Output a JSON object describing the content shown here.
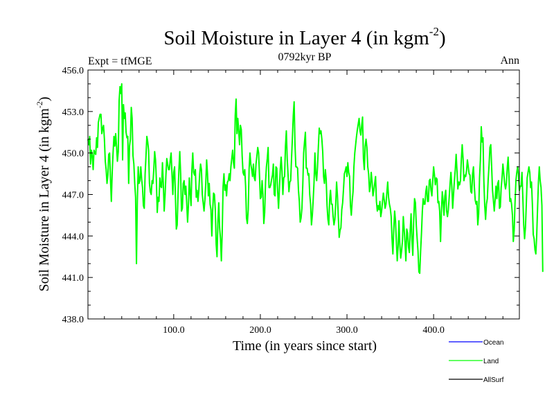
{
  "chart_data": {
    "type": "line",
    "title": "Soil Moisture in Layer 4 (in kgm",
    "title_sup": "-2",
    "title_end": ")",
    "subtitle_left": "Expt = tfMGE",
    "subtitle_center": "0792kyr BP",
    "subtitle_right": "Ann",
    "xlabel": "Time (in years since start)",
    "ylabel": "Soil Moisture in Layer 4 (in kgm",
    "ylabel_sup": "-2",
    "ylabel_end": ")",
    "xlim": [
      1,
      499
    ],
    "ylim": [
      438.0,
      456.0
    ],
    "x_ticks": [
      100,
      200,
      300,
      400
    ],
    "x_tick_labels": [
      "100.0",
      "200.0",
      "300.0",
      "400.0"
    ],
    "y_ticks": [
      438,
      441,
      444,
      447,
      450,
      453,
      456
    ],
    "y_tick_labels": [
      "438.0",
      "441.0",
      "444.0",
      "447.0",
      "450.0",
      "453.0",
      "456.0"
    ],
    "series": [
      {
        "name": "Land",
        "color": "#00ff00",
        "x_start": 1,
        "x_step": 1,
        "values": [
          451.0,
          450.6,
          451.2,
          449.2,
          450.2,
          449.8,
          448.8,
          450.2,
          450.0,
          449.9,
          451.1,
          450.4,
          452.2,
          452.5,
          452.8,
          452.8,
          451.4,
          451.8,
          452.0,
          451.0,
          449.4,
          448.8,
          447.8,
          448.4,
          449.9,
          450.0,
          448.1,
          446.5,
          448.6,
          450.0,
          451.2,
          450.5,
          451.4,
          450.5,
          449.4,
          450.1,
          453.8,
          454.8,
          454.3,
          455.0,
          449.5,
          453.5,
          452.5,
          452.9,
          451.5,
          451.1,
          451.2,
          447.8,
          450.5,
          451.0,
          453.3,
          452.5,
          449.8,
          449.2,
          447.8,
          446.8,
          442.0,
          446.5,
          449.0,
          447.8,
          448.0,
          449.0,
          448.1,
          447.5,
          446.2,
          446.0,
          448.5,
          449.8,
          451.2,
          450.8,
          450.2,
          447.8,
          447.2,
          447.0,
          448.0,
          447.8,
          448.8,
          450.1,
          449.5,
          448.0,
          445.7,
          446.8,
          446.5,
          448.2,
          447.6,
          447.5,
          449.3,
          447.8,
          445.8,
          446.9,
          448.4,
          449.6,
          449.2,
          448.8,
          448.8,
          449.5,
          450.0,
          448.5,
          447.0,
          448.6,
          449.0,
          446.8,
          444.5,
          444.8,
          447.0,
          448.8,
          450.1,
          448.5,
          445.8,
          446.0,
          447.8,
          448.0,
          447.0,
          447.6,
          446.4,
          445.0,
          446.2,
          448.2,
          447.1,
          446.2,
          448.8,
          450.0,
          448.6,
          448.4,
          448.8,
          446.8,
          447.3,
          446.5,
          447.3,
          448.5,
          449.2,
          448.8,
          447.0,
          446.4,
          445.8,
          446.6,
          447.8,
          449.5,
          448.5,
          446.9,
          447.8,
          446.3,
          445.9,
          444.0,
          445.9,
          447.1,
          447.0,
          445.9,
          443.4,
          442.5,
          445.0,
          446.4,
          444.6,
          443.8,
          442.2,
          444.3,
          447.6,
          448.5,
          447.3,
          447.7,
          446.9,
          447.9,
          448.0,
          448.5,
          448.0,
          449.0,
          449.6,
          450.2,
          449.3,
          448.9,
          452.7,
          453.9,
          451.4,
          452.5,
          451.6,
          450.6,
          452.0,
          451.7,
          449.8,
          448.6,
          448.4,
          448.8,
          447.6,
          445.3,
          444.9,
          445.9,
          448.8,
          450.0,
          449.2,
          448.8,
          448.3,
          449.2,
          448.2,
          448.0,
          449.2,
          449.8,
          450.4,
          450.0,
          448.4,
          446.7,
          446.8,
          448.0,
          447.0,
          444.9,
          445.7,
          447.9,
          449.0,
          449.6,
          450.4,
          447.5,
          447.5,
          447.7,
          448.1,
          448.4,
          449.2,
          447.0,
          446.9,
          449.0,
          448.9,
          447.2,
          446.0,
          447.4,
          448.8,
          449.7,
          448.7,
          447.0,
          448.2,
          448.3,
          450.5,
          451.6,
          449.6,
          448.4,
          447.2,
          447.9,
          448.0,
          449.6,
          451.1,
          452.7,
          453.7,
          450.6,
          449.0,
          449.0,
          448.9,
          447.3,
          446.5,
          445.0,
          445.3,
          446.0,
          447.7,
          450.0,
          450.8,
          451.5,
          448.9,
          448.9,
          448.4,
          448.5,
          447.0,
          446.3,
          444.8,
          445.5,
          446.6,
          447.9,
          450.0,
          448.5,
          448.0,
          449.0,
          450.5,
          451.8,
          451.4,
          451.6,
          451.0,
          450.1,
          448.3,
          447.8,
          448.8,
          448.1,
          446.2,
          445.2,
          444.8,
          446.6,
          447.3,
          446.3,
          446.3,
          445.4,
          444.8,
          445.2,
          446.3,
          447.9,
          446.9,
          445.4,
          443.9,
          444.4,
          444.6,
          445.9,
          446.4,
          447.4,
          448.5,
          448.7,
          449.0,
          448.3,
          449.3,
          448.6,
          448.3,
          446.2,
          445.5,
          446.5,
          447.2,
          449.0,
          450.0,
          450.6,
          451.2,
          451.7,
          452.1,
          452.5,
          451.6,
          451.3,
          452.0,
          452.6,
          449.6,
          448.8,
          450.5,
          451.0,
          450.4,
          449.0,
          448.5,
          447.2,
          447.6,
          448.6,
          447.9,
          446.9,
          447.3,
          447.8,
          448.3,
          446.5,
          445.8,
          446.2,
          445.9,
          446.5,
          445.4,
          445.8,
          446.5,
          447.1,
          446.6,
          446.0,
          446.3,
          447.1,
          447.9,
          446.8,
          446.3,
          446.0,
          445.4,
          443.8,
          442.7,
          444.4,
          445.8,
          445.1,
          443.6,
          442.2,
          443.2,
          445.1,
          443.4,
          442.4,
          442.9,
          443.6,
          445.4,
          444.5,
          443.5,
          442.2,
          444.5,
          444.2,
          443.2,
          442.8,
          444.4,
          445.6,
          443.7,
          442.6,
          445.1,
          446.7,
          446.4,
          444.8,
          443.8,
          442.9,
          441.4,
          441.3,
          442.9,
          444.2,
          445.8,
          446.7,
          446.3,
          446.3,
          447.2,
          447.6,
          446.5,
          446.5,
          448.0,
          448.1,
          447.3,
          446.9,
          448.0,
          449.0,
          448.4,
          447.7,
          448.2,
          448.1,
          446.4,
          446.5,
          445.8,
          443.6,
          445.7,
          447.2,
          446.5,
          445.5,
          446.9,
          447.3,
          445.8,
          445.4,
          445.9,
          446.8,
          447.8,
          448.6,
          447.6,
          446.0,
          447.0,
          448.0,
          448.8,
          449.9,
          448.7,
          447.4,
          447.9,
          447.7,
          448.0,
          449.5,
          450.6,
          449.6,
          448.0,
          448.4,
          448.3,
          448.7,
          449.5,
          449.0,
          448.5,
          448.4,
          447.2,
          447.1,
          448.5,
          449.0,
          447.6,
          446.6,
          446.3,
          446.5,
          444.8,
          445.6,
          448.2,
          449.5,
          451.9,
          450.8,
          451.1,
          448.0,
          446.2,
          445.2,
          446.3,
          446.7,
          448.1,
          449.1,
          450.4,
          450.6,
          449.0,
          447.3,
          446.6,
          445.8,
          446.6,
          447.6,
          446.7,
          447.8,
          448.0,
          446.0,
          446.1,
          447.5,
          448.2,
          449.2,
          448.5,
          447.8,
          447.4,
          447.8,
          448.9,
          449.7,
          448.3,
          446.5,
          446.7,
          446.3,
          445.5,
          443.6,
          444.4,
          446.4,
          448.0,
          448.6,
          449.0,
          448.4,
          447.3,
          447.6,
          447.6,
          448.6,
          446.8,
          444.8,
          443.8,
          444.6,
          446.3,
          448.2,
          448.6,
          449.0,
          448.6,
          447.5,
          447.9,
          446.3,
          444.1,
          443.8,
          443.0,
          442.7,
          444.0,
          446.0,
          447.9,
          449.0,
          448.0,
          447.5,
          446.2,
          441.4
        ]
      },
      {
        "name": "Ocean",
        "color": "#0000ff",
        "values": []
      },
      {
        "name": "AllSurf",
        "color": "#000000",
        "values": []
      }
    ],
    "legend": {
      "position": "bottom-right",
      "entries": [
        {
          "label": "Ocean",
          "color": "#0000ff"
        },
        {
          "label": "Land",
          "color": "#00ff00"
        },
        {
          "label": "AllSurf",
          "color": "#000000"
        }
      ]
    },
    "grid": false
  }
}
